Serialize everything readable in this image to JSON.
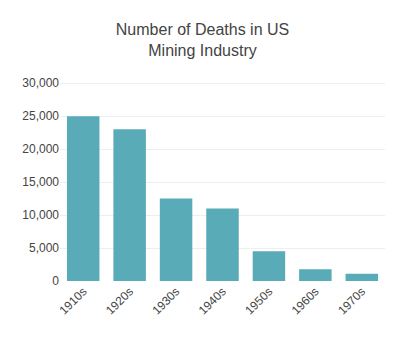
{
  "chart_data": {
    "type": "bar",
    "title": "Number of Deaths in US\nMining Industry",
    "categories": [
      "1910s",
      "1920s",
      "1930s",
      "1940s",
      "1950s",
      "1960s",
      "1970s"
    ],
    "values": [
      25000,
      23000,
      12500,
      11000,
      4500,
      1800,
      1100
    ],
    "color": "#5aabb8",
    "ylim": [
      0,
      32000
    ],
    "yticks": [
      0,
      {
        "value": 5000,
        "label": "5,000"
      },
      {
        "value": 10000,
        "label": "10,000"
      },
      {
        "value": 15000,
        "label": "15,000"
      },
      {
        "value": 20000,
        "label": "20,000"
      },
      {
        "value": 25000,
        "label": "25,000"
      },
      {
        "value": 30000,
        "label": "30,000"
      }
    ],
    "grid": true
  }
}
